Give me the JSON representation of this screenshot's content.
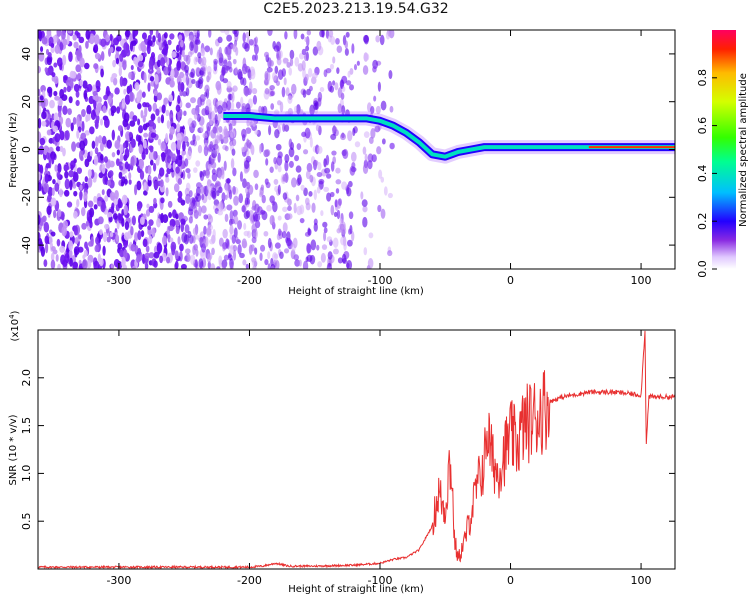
{
  "title": "C2E5.2023.213.19.54.G32",
  "chart_data": [
    {
      "type": "heatmap",
      "name": "spectrogram",
      "xlabel": "Height of straight line (km)",
      "ylabel": "Frequency (Hz)",
      "xlim": [
        -362,
        126
      ],
      "ylim": [
        -50,
        50
      ],
      "xticks": [
        -300,
        -200,
        -100,
        0,
        100
      ],
      "yticks": [
        -40,
        -20,
        0,
        20,
        40
      ],
      "colorbar": {
        "label": "Normalized spectral amplitude",
        "range": [
          0,
          1
        ],
        "ticks": [
          "0.0",
          "0.2",
          "0.4",
          "0.6",
          "0.8"
        ]
      },
      "signal_track": {
        "x": [
          -220,
          -200,
          -180,
          -160,
          -140,
          -120,
          -110,
          -100,
          -90,
          -80,
          -70,
          -60,
          -50,
          -40,
          -30,
          -20,
          -10,
          0,
          20,
          60,
          100,
          126
        ],
        "frequency": [
          14,
          14,
          13,
          13,
          13,
          13,
          13,
          12,
          10,
          7,
          3,
          -2,
          -3,
          -1,
          0,
          1,
          1,
          1,
          1,
          1,
          1,
          1
        ]
      },
      "noise_region_x": [
        -362,
        -110
      ]
    },
    {
      "type": "line",
      "name": "snr",
      "xlabel": "Height of straight line (km)",
      "ylabel": "SNR (10 * v/v)",
      "y_multiplier": "(x10",
      "y_multiplier_exp": "4",
      "y_multiplier_close": ")",
      "xlim": [
        -362,
        126
      ],
      "ylim": [
        0,
        2.5
      ],
      "xticks": [
        -300,
        -200,
        -100,
        0,
        100
      ],
      "yticks": [
        "0.5",
        "1.0",
        "1.5",
        "2.0"
      ],
      "ytick_values": [
        0.5,
        1.0,
        1.5,
        2.0
      ],
      "color": "#e83030",
      "series": [
        {
          "x": [
            -362,
            -300,
            -250,
            -200,
            -190,
            -180,
            -170,
            -150,
            -120,
            -100,
            -90,
            -80,
            -70,
            -60,
            -55,
            -50,
            -47,
            -45,
            -43,
            -40,
            -35,
            -30,
            -25,
            -20,
            -18,
            -15,
            -10,
            -5,
            0,
            5,
            10,
            20,
            30,
            40,
            60,
            80,
            100,
            103,
            104,
            106,
            110,
            126
          ],
          "y": [
            0.02,
            0.02,
            0.02,
            0.02,
            0.03,
            0.06,
            0.03,
            0.03,
            0.04,
            0.06,
            0.1,
            0.12,
            0.2,
            0.45,
            0.8,
            0.6,
            1.1,
            1.0,
            0.3,
            0.1,
            0.3,
            0.6,
            0.9,
            1.1,
            1.5,
            1.2,
            1.0,
            1.2,
            1.4,
            1.3,
            1.5,
            1.6,
            1.75,
            1.8,
            1.85,
            1.85,
            1.82,
            2.5,
            1.3,
            1.8,
            1.8,
            1.8
          ]
        }
      ]
    }
  ]
}
